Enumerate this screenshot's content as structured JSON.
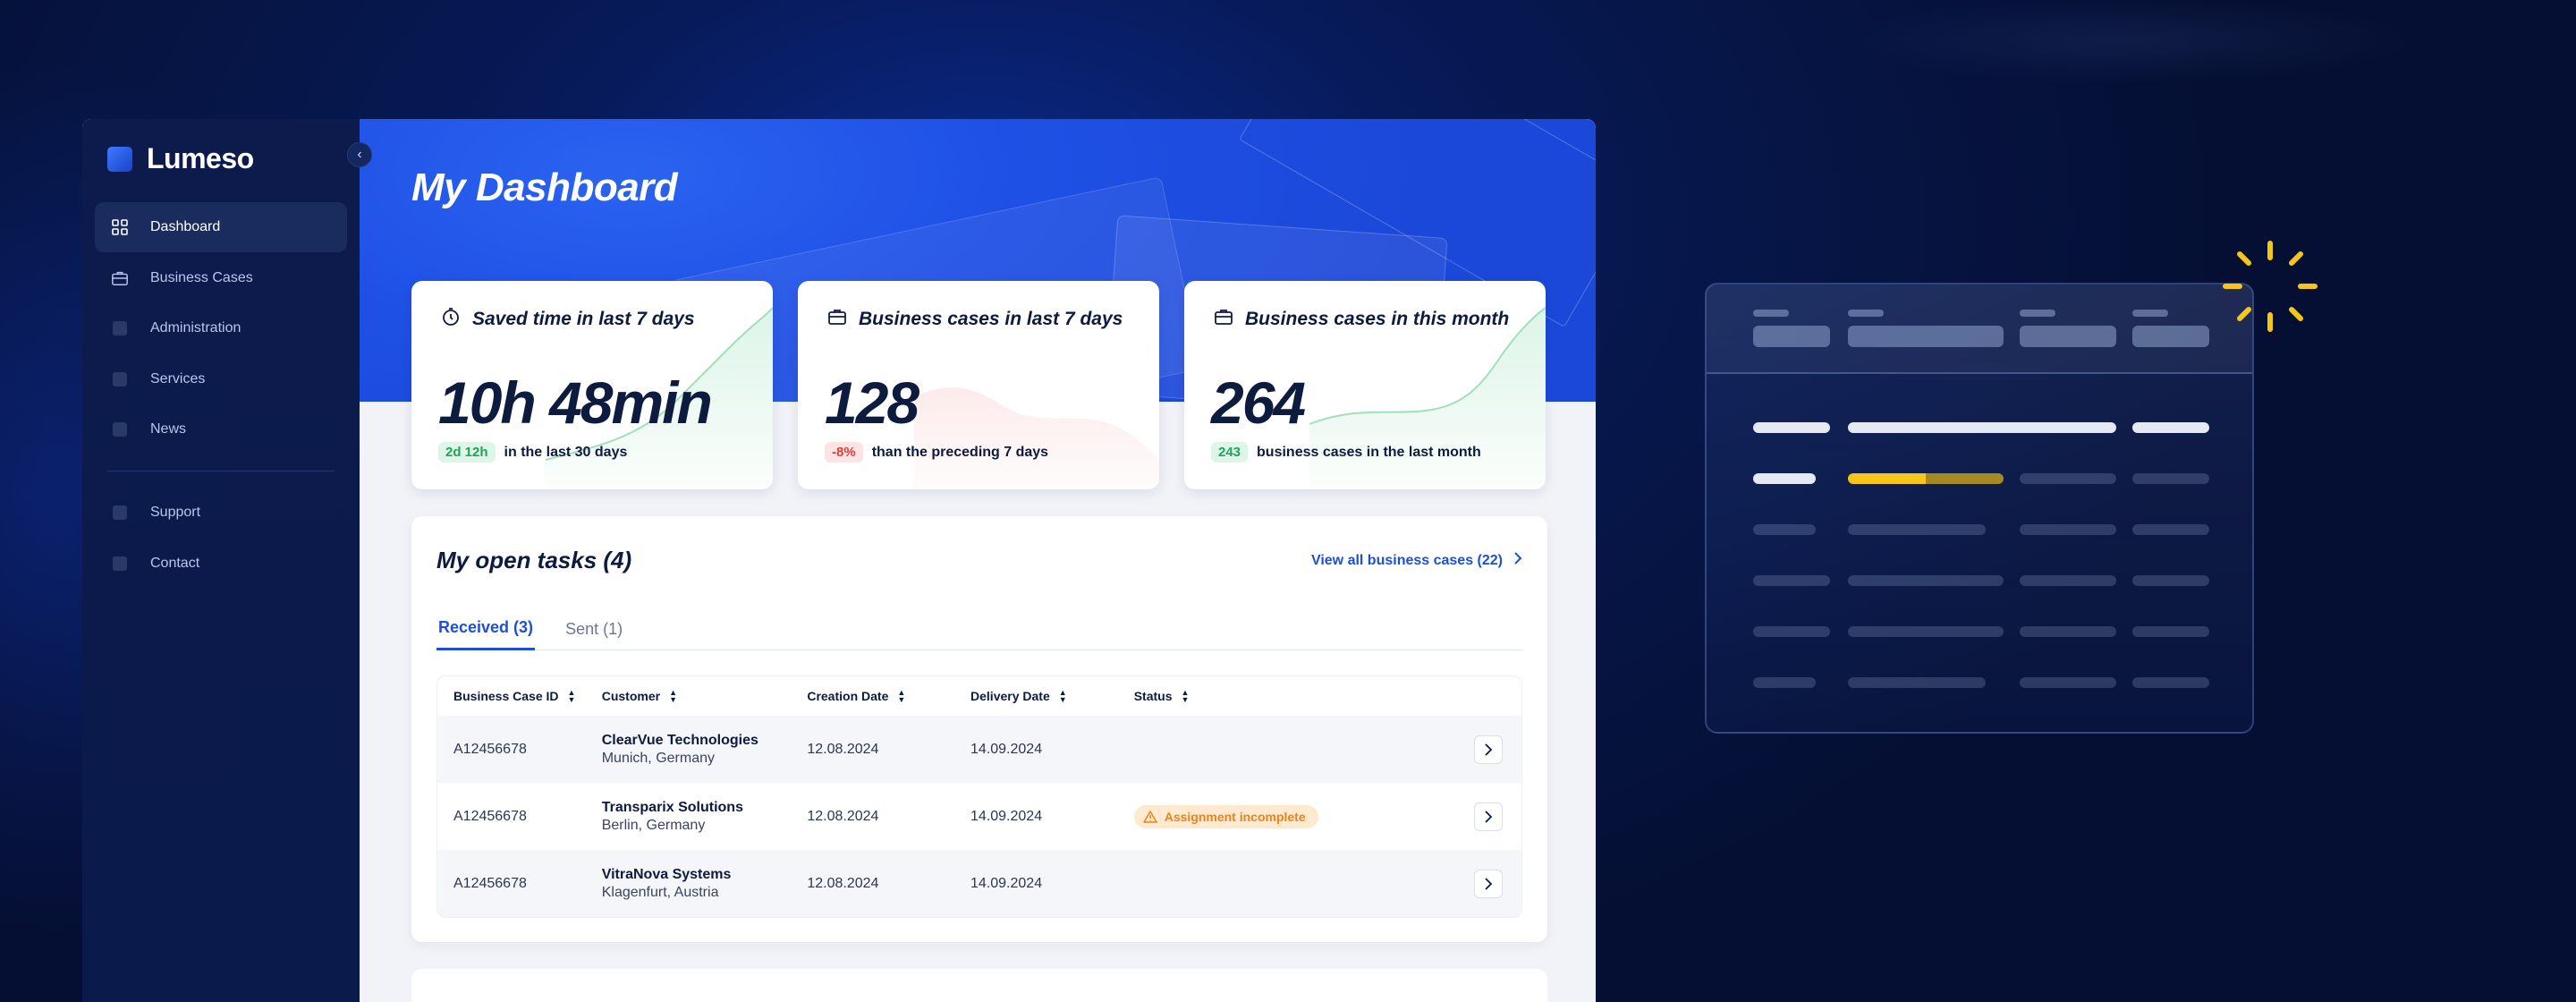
{
  "app": {
    "brand": "Lumeso",
    "collapse_icon": "‹"
  },
  "sidebar": {
    "items": [
      {
        "label": "Dashboard",
        "icon": "grid-icon",
        "active": true
      },
      {
        "label": "Business Cases",
        "icon": "briefcase-icon"
      },
      {
        "label": "Administration",
        "icon": "admin-icon"
      },
      {
        "label": "Services",
        "icon": "services-icon"
      },
      {
        "label": "News",
        "icon": "news-icon"
      }
    ],
    "secondary": [
      {
        "label": "Support",
        "icon": "support-icon"
      },
      {
        "label": "Contact",
        "icon": "contact-icon"
      }
    ]
  },
  "header": {
    "title": "My Dashboard"
  },
  "stats": [
    {
      "title": "Saved time in last 7 days",
      "value": "10h 48min",
      "badge": "2d 12h",
      "badge_color": "green",
      "caption": "in the last 30 days",
      "icon": "stopwatch-icon"
    },
    {
      "title": "Business cases in last 7 days",
      "value": "128",
      "badge": "-8%",
      "badge_color": "red",
      "caption": "than the preceding 7 days",
      "icon": "briefcase-icon"
    },
    {
      "title": "Business cases in this month",
      "value": "264",
      "badge": "243",
      "badge_color": "green",
      "caption": "business cases in the last month",
      "icon": "briefcase-icon"
    }
  ],
  "tasks": {
    "title": "My open tasks (4)",
    "view_all": "View all business cases (22)",
    "tabs": [
      {
        "label": "Received (3)",
        "active": true
      },
      {
        "label": "Sent (1)",
        "active": false
      }
    ],
    "columns": [
      "Business Case ID",
      "Customer",
      "Creation Date",
      "Delivery Date",
      "Status"
    ],
    "rows": [
      {
        "id": "A12456678",
        "customer": "ClearVue Technologies",
        "location": "Munich, Germany",
        "created": "12.08.2024",
        "delivery": "14.09.2024",
        "status": ""
      },
      {
        "id": "A12456678",
        "customer": "Transparix Solutions",
        "location": "Berlin, Germany",
        "created": "12.08.2024",
        "delivery": "14.09.2024",
        "status": "Assignment incomplete"
      },
      {
        "id": "A12456678",
        "customer": "VitraNova Systems",
        "location": "Klagenfurt, Austria",
        "created": "12.08.2024",
        "delivery": "14.09.2024",
        "status": ""
      }
    ]
  },
  "colors": {
    "accent": "#1d4fd8",
    "hero": "#1f51e6",
    "sidebar": "#0c1b4c",
    "success": "#21a35a",
    "danger": "#e03b3b",
    "warning": "#e8841f",
    "highlight": "#f5c518"
  }
}
